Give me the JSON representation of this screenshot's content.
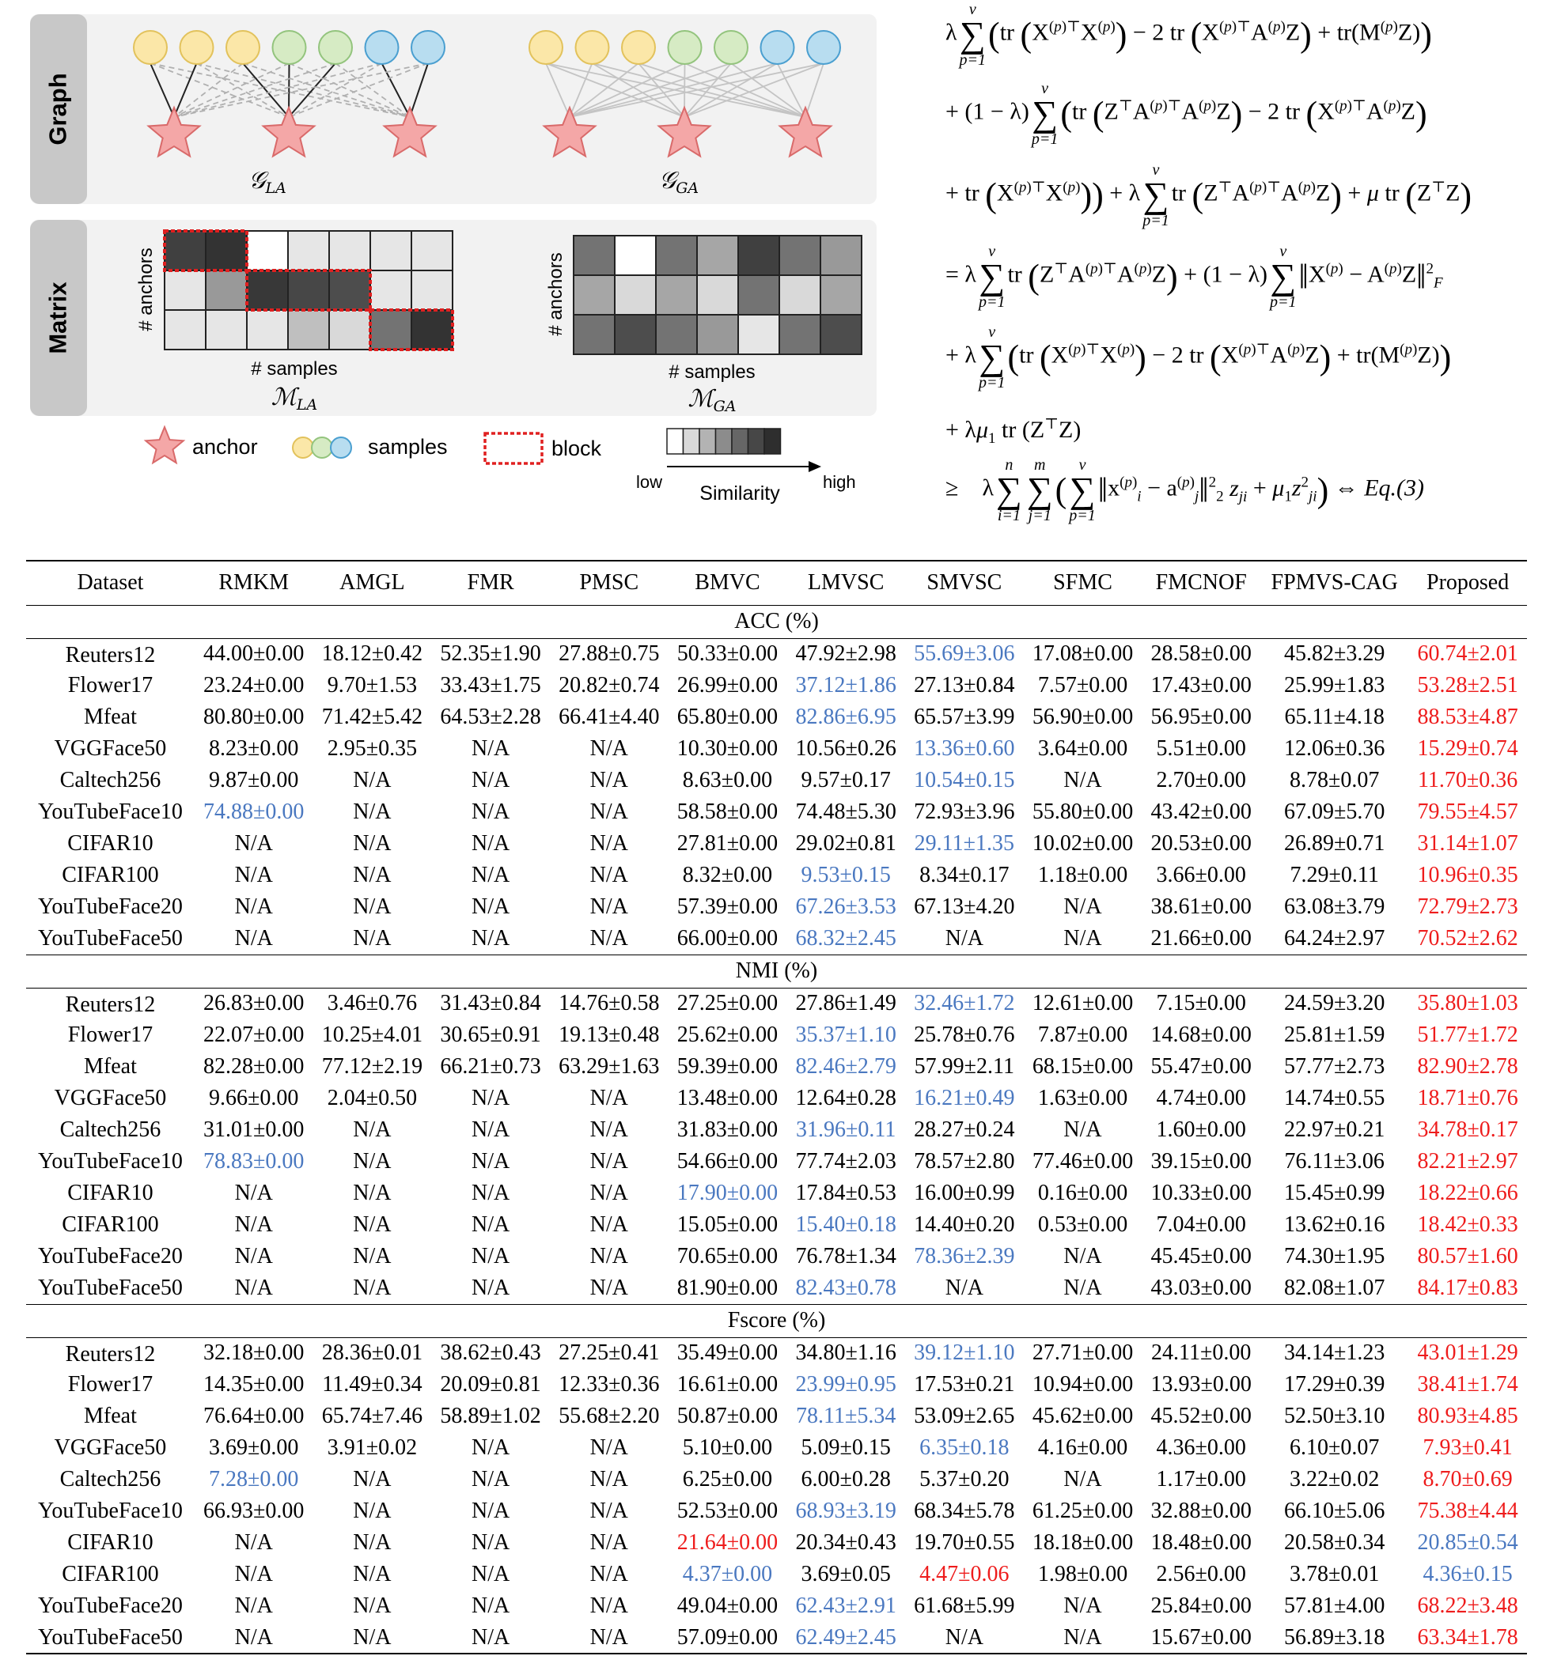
{
  "figure": {
    "graph_label": "Graph",
    "matrix_label": "Matrix",
    "graph_la_caption": "𝒢",
    "graph_la_sub": "LA",
    "graph_ga_caption": "𝒢",
    "graph_ga_sub": "GA",
    "matrix_la_caption": "ℳ",
    "matrix_la_sub": "LA",
    "matrix_ga_caption": "ℳ",
    "matrix_ga_sub": "GA",
    "axis_anchors": "# anchors",
    "axis_samples": "# samples",
    "legend_anchor": "anchor",
    "legend_samples": "samples",
    "legend_block": "block",
    "legend_low": "low",
    "legend_high": "high",
    "legend_similarity": "Similarity",
    "sample_colors": [
      "#fbe7a8",
      "#fbe7a8",
      "#fbe7a8",
      "#d6ebc4",
      "#d6ebc4",
      "#b8ddf0",
      "#b8ddf0"
    ],
    "sample_stroke_colors": [
      "#e2c25c",
      "#e2c25c",
      "#e2c25c",
      "#93c47d",
      "#93c47d",
      "#4a9fd0",
      "#4a9fd0"
    ],
    "star_color": "#f4a7a7",
    "star_stroke": "#d96a6a",
    "block_color": "#e02020",
    "la_matrix": [
      [
        0.25,
        0.2,
        1.0,
        0.9,
        0.9,
        0.9,
        0.9
      ],
      [
        0.9,
        0.6,
        0.22,
        0.28,
        0.3,
        0.9,
        0.9
      ],
      [
        0.9,
        0.9,
        0.9,
        0.75,
        0.85,
        0.45,
        0.2
      ]
    ],
    "ga_matrix": [
      [
        0.45,
        1.0,
        0.45,
        0.65,
        0.25,
        0.45,
        0.6
      ],
      [
        0.65,
        0.85,
        0.65,
        0.85,
        0.45,
        0.85,
        0.65
      ],
      [
        0.45,
        0.3,
        0.45,
        0.6,
        0.9,
        0.45,
        0.3
      ]
    ],
    "similarity_scale": [
      1.0,
      0.85,
      0.7,
      0.55,
      0.4,
      0.28,
      0.18
    ]
  },
  "equations": {
    "lambda": "λ",
    "one_minus_lambda": "(1 − λ)",
    "mu": "μ",
    "mu1": "μ",
    "eq_ref": "Eq.(3)"
  },
  "table": {
    "columns": [
      "Dataset",
      "RMKM",
      "AMGL",
      "FMR",
      "PMSC",
      "BMVC",
      "LMVSC",
      "SMVSC",
      "SFMC",
      "FMCNOF",
      "FPMVS-CAG",
      "Proposed"
    ],
    "sections": [
      {
        "title": "ACC (%)",
        "rows": [
          {
            "dataset": "Reuters12",
            "values": [
              "44.00±0.00",
              "18.12±0.42",
              "52.35±1.90",
              "27.88±0.75",
              "50.33±0.00",
              "47.92±2.98",
              "55.69±3.06",
              "17.08±0.00",
              "28.58±0.00",
              "45.82±3.29",
              "60.74±2.01"
            ],
            "blue": [
              6
            ],
            "red": [
              10
            ]
          },
          {
            "dataset": "Flower17",
            "values": [
              "23.24±0.00",
              "9.70±1.53",
              "33.43±1.75",
              "20.82±0.74",
              "26.99±0.00",
              "37.12±1.86",
              "27.13±0.84",
              "7.57±0.00",
              "17.43±0.00",
              "25.99±1.83",
              "53.28±2.51"
            ],
            "blue": [
              5
            ],
            "red": [
              10
            ]
          },
          {
            "dataset": "Mfeat",
            "values": [
              "80.80±0.00",
              "71.42±5.42",
              "64.53±2.28",
              "66.41±4.40",
              "65.80±0.00",
              "82.86±6.95",
              "65.57±3.99",
              "56.90±0.00",
              "56.95±0.00",
              "65.11±4.18",
              "88.53±4.87"
            ],
            "blue": [
              5
            ],
            "red": [
              10
            ]
          },
          {
            "dataset": "VGGFace50",
            "values": [
              "8.23±0.00",
              "2.95±0.35",
              "N/A",
              "N/A",
              "10.30±0.00",
              "10.56±0.26",
              "13.36±0.60",
              "3.64±0.00",
              "5.51±0.00",
              "12.06±0.36",
              "15.29±0.74"
            ],
            "blue": [
              6
            ],
            "red": [
              10
            ]
          },
          {
            "dataset": "Caltech256",
            "values": [
              "9.87±0.00",
              "N/A",
              "N/A",
              "N/A",
              "8.63±0.00",
              "9.57±0.17",
              "10.54±0.15",
              "N/A",
              "2.70±0.00",
              "8.78±0.07",
              "11.70±0.36"
            ],
            "blue": [
              6
            ],
            "red": [
              10
            ]
          },
          {
            "dataset": "YouTubeFace10",
            "values": [
              "74.88±0.00",
              "N/A",
              "N/A",
              "N/A",
              "58.58±0.00",
              "74.48±5.30",
              "72.93±3.96",
              "55.80±0.00",
              "43.42±0.00",
              "67.09±5.70",
              "79.55±4.57"
            ],
            "blue": [
              0
            ],
            "red": [
              10
            ]
          },
          {
            "dataset": "CIFAR10",
            "values": [
              "N/A",
              "N/A",
              "N/A",
              "N/A",
              "27.81±0.00",
              "29.02±0.81",
              "29.11±1.35",
              "10.02±0.00",
              "20.53±0.00",
              "26.89±0.71",
              "31.14±1.07"
            ],
            "blue": [
              6
            ],
            "red": [
              10
            ]
          },
          {
            "dataset": "CIFAR100",
            "values": [
              "N/A",
              "N/A",
              "N/A",
              "N/A",
              "8.32±0.00",
              "9.53±0.15",
              "8.34±0.17",
              "1.18±0.00",
              "3.66±0.00",
              "7.29±0.11",
              "10.96±0.35"
            ],
            "blue": [
              5
            ],
            "red": [
              10
            ]
          },
          {
            "dataset": "YouTubeFace20",
            "values": [
              "N/A",
              "N/A",
              "N/A",
              "N/A",
              "57.39±0.00",
              "67.26±3.53",
              "67.13±4.20",
              "N/A",
              "38.61±0.00",
              "63.08±3.79",
              "72.79±2.73"
            ],
            "blue": [
              5
            ],
            "red": [
              10
            ]
          },
          {
            "dataset": "YouTubeFace50",
            "values": [
              "N/A",
              "N/A",
              "N/A",
              "N/A",
              "66.00±0.00",
              "68.32±2.45",
              "N/A",
              "N/A",
              "21.66±0.00",
              "64.24±2.97",
              "70.52±2.62"
            ],
            "blue": [
              5
            ],
            "red": [
              10
            ]
          }
        ]
      },
      {
        "title": "NMI (%)",
        "rows": [
          {
            "dataset": "Reuters12",
            "values": [
              "26.83±0.00",
              "3.46±0.76",
              "31.43±0.84",
              "14.76±0.58",
              "27.25±0.00",
              "27.86±1.49",
              "32.46±1.72",
              "12.61±0.00",
              "7.15±0.00",
              "24.59±3.20",
              "35.80±1.03"
            ],
            "blue": [
              6
            ],
            "red": [
              10
            ]
          },
          {
            "dataset": "Flower17",
            "values": [
              "22.07±0.00",
              "10.25±4.01",
              "30.65±0.91",
              "19.13±0.48",
              "25.62±0.00",
              "35.37±1.10",
              "25.78±0.76",
              "7.87±0.00",
              "14.68±0.00",
              "25.81±1.59",
              "51.77±1.72"
            ],
            "blue": [
              5
            ],
            "red": [
              10
            ]
          },
          {
            "dataset": "Mfeat",
            "values": [
              "82.28±0.00",
              "77.12±2.19",
              "66.21±0.73",
              "63.29±1.63",
              "59.39±0.00",
              "82.46±2.79",
              "57.99±2.11",
              "68.15±0.00",
              "55.47±0.00",
              "57.77±2.73",
              "82.90±2.78"
            ],
            "blue": [
              5
            ],
            "red": [
              10
            ]
          },
          {
            "dataset": "VGGFace50",
            "values": [
              "9.66±0.00",
              "2.04±0.50",
              "N/A",
              "N/A",
              "13.48±0.00",
              "12.64±0.28",
              "16.21±0.49",
              "1.63±0.00",
              "4.74±0.00",
              "14.74±0.55",
              "18.71±0.76"
            ],
            "blue": [
              6
            ],
            "red": [
              10
            ]
          },
          {
            "dataset": "Caltech256",
            "values": [
              "31.01±0.00",
              "N/A",
              "N/A",
              "N/A",
              "31.83±0.00",
              "31.96±0.11",
              "28.27±0.24",
              "N/A",
              "1.60±0.00",
              "22.97±0.21",
              "34.78±0.17"
            ],
            "blue": [
              5
            ],
            "red": [
              10
            ]
          },
          {
            "dataset": "YouTubeFace10",
            "values": [
              "78.83±0.00",
              "N/A",
              "N/A",
              "N/A",
              "54.66±0.00",
              "77.74±2.03",
              "78.57±2.80",
              "77.46±0.00",
              "39.15±0.00",
              "76.11±3.06",
              "82.21±2.97"
            ],
            "blue": [
              0
            ],
            "red": [
              10
            ]
          },
          {
            "dataset": "CIFAR10",
            "values": [
              "N/A",
              "N/A",
              "N/A",
              "N/A",
              "17.90±0.00",
              "17.84±0.53",
              "16.00±0.99",
              "0.16±0.00",
              "10.33±0.00",
              "15.45±0.99",
              "18.22±0.66"
            ],
            "blue": [
              4
            ],
            "red": [
              10
            ]
          },
          {
            "dataset": "CIFAR100",
            "values": [
              "N/A",
              "N/A",
              "N/A",
              "N/A",
              "15.05±0.00",
              "15.40±0.18",
              "14.40±0.20",
              "0.53±0.00",
              "7.04±0.00",
              "13.62±0.16",
              "18.42±0.33"
            ],
            "blue": [
              5
            ],
            "red": [
              10
            ]
          },
          {
            "dataset": "YouTubeFace20",
            "values": [
              "N/A",
              "N/A",
              "N/A",
              "N/A",
              "70.65±0.00",
              "76.78±1.34",
              "78.36±2.39",
              "N/A",
              "45.45±0.00",
              "74.30±1.95",
              "80.57±1.60"
            ],
            "blue": [
              6
            ],
            "red": [
              10
            ]
          },
          {
            "dataset": "YouTubeFace50",
            "values": [
              "N/A",
              "N/A",
              "N/A",
              "N/A",
              "81.90±0.00",
              "82.43±0.78",
              "N/A",
              "N/A",
              "43.03±0.00",
              "82.08±1.07",
              "84.17±0.83"
            ],
            "blue": [
              5
            ],
            "red": [
              10
            ]
          }
        ]
      },
      {
        "title": "Fscore (%)",
        "rows": [
          {
            "dataset": "Reuters12",
            "values": [
              "32.18±0.00",
              "28.36±0.01",
              "38.62±0.43",
              "27.25±0.41",
              "35.49±0.00",
              "34.80±1.16",
              "39.12±1.10",
              "27.71±0.00",
              "24.11±0.00",
              "34.14±1.23",
              "43.01±1.29"
            ],
            "blue": [
              6
            ],
            "red": [
              10
            ]
          },
          {
            "dataset": "Flower17",
            "values": [
              "14.35±0.00",
              "11.49±0.34",
              "20.09±0.81",
              "12.33±0.36",
              "16.61±0.00",
              "23.99±0.95",
              "17.53±0.21",
              "10.94±0.00",
              "13.93±0.00",
              "17.29±0.39",
              "38.41±1.74"
            ],
            "blue": [
              5
            ],
            "red": [
              10
            ]
          },
          {
            "dataset": "Mfeat",
            "values": [
              "76.64±0.00",
              "65.74±7.46",
              "58.89±1.02",
              "55.68±2.20",
              "50.87±0.00",
              "78.11±5.34",
              "53.09±2.65",
              "45.62±0.00",
              "45.52±0.00",
              "52.50±3.10",
              "80.93±4.85"
            ],
            "blue": [
              5
            ],
            "red": [
              10
            ]
          },
          {
            "dataset": "VGGFace50",
            "values": [
              "3.69±0.00",
              "3.91±0.02",
              "N/A",
              "N/A",
              "5.10±0.00",
              "5.09±0.15",
              "6.35±0.18",
              "4.16±0.00",
              "4.36±0.00",
              "6.10±0.07",
              "7.93±0.41"
            ],
            "blue": [
              6
            ],
            "red": [
              10
            ]
          },
          {
            "dataset": "Caltech256",
            "values": [
              "7.28±0.00",
              "N/A",
              "N/A",
              "N/A",
              "6.25±0.00",
              "6.00±0.28",
              "5.37±0.20",
              "N/A",
              "1.17±0.00",
              "3.22±0.02",
              "8.70±0.69"
            ],
            "blue": [
              0
            ],
            "red": [
              10
            ]
          },
          {
            "dataset": "YouTubeFace10",
            "values": [
              "66.93±0.00",
              "N/A",
              "N/A",
              "N/A",
              "52.53±0.00",
              "68.93±3.19",
              "68.34±5.78",
              "61.25±0.00",
              "32.88±0.00",
              "66.10±5.06",
              "75.38±4.44"
            ],
            "blue": [
              5
            ],
            "red": [
              10
            ]
          },
          {
            "dataset": "CIFAR10",
            "values": [
              "N/A",
              "N/A",
              "N/A",
              "N/A",
              "21.64±0.00",
              "20.34±0.43",
              "19.70±0.55",
              "18.18±0.00",
              "18.48±0.00",
              "20.58±0.34",
              "20.85±0.54"
            ],
            "blue": [
              10
            ],
            "red": [
              4
            ]
          },
          {
            "dataset": "CIFAR100",
            "values": [
              "N/A",
              "N/A",
              "N/A",
              "N/A",
              "4.37±0.00",
              "3.69±0.05",
              "4.47±0.06",
              "1.98±0.00",
              "2.56±0.00",
              "3.78±0.01",
              "4.36±0.15"
            ],
            "blue": [
              4,
              10
            ],
            "red": [
              6
            ]
          },
          {
            "dataset": "YouTubeFace20",
            "values": [
              "N/A",
              "N/A",
              "N/A",
              "N/A",
              "49.04±0.00",
              "62.43±2.91",
              "61.68±5.99",
              "N/A",
              "25.84±0.00",
              "57.81±4.00",
              "68.22±3.48"
            ],
            "blue": [
              5
            ],
            "red": [
              10
            ]
          },
          {
            "dataset": "YouTubeFace50",
            "values": [
              "N/A",
              "N/A",
              "N/A",
              "N/A",
              "57.09±0.00",
              "62.49±2.45",
              "N/A",
              "N/A",
              "15.67±0.00",
              "56.89±3.18",
              "63.34±1.78"
            ],
            "blue": [
              5
            ],
            "red": [
              10
            ]
          }
        ]
      }
    ]
  }
}
